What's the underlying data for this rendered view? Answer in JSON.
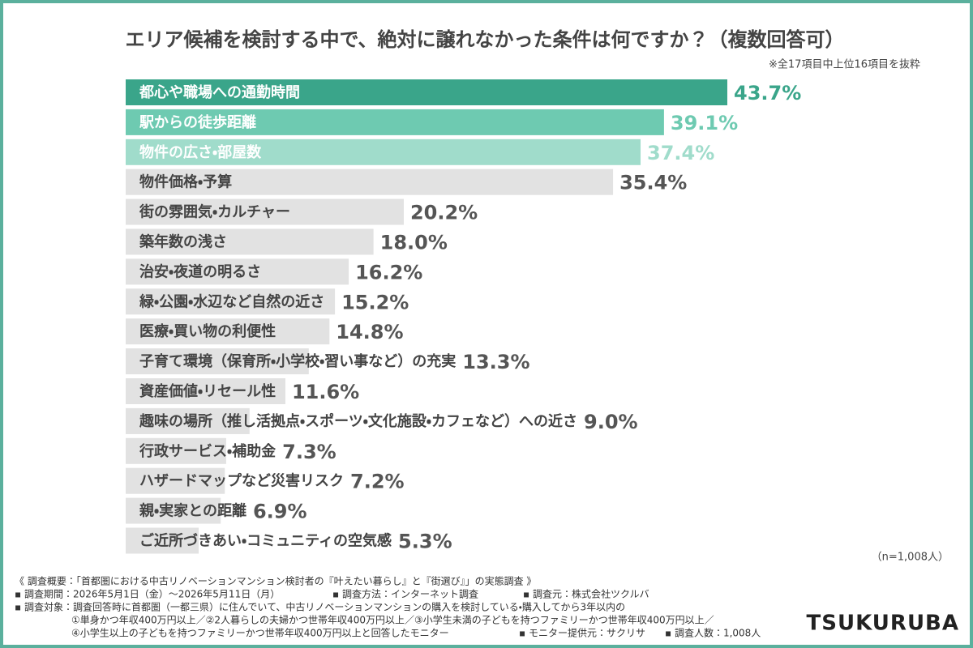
{
  "chart_data": {
    "type": "hbar",
    "title": "エリア候補を検討する中で、絶対に譲れなかった条件は何ですか？（複数回答可）",
    "subtitle": "※全17項目中上位16項目を抜粋",
    "sample_size": "（n=1,008人）",
    "categories": [
      "都心や職場への通勤時間",
      "駅からの徒歩距離",
      "物件の広さ・部屋数",
      "物件価格・予算",
      "街の雰囲気・カルチャー",
      "築年数の浅さ",
      "治安・夜道の明るさ",
      "緑・公園・水辺など自然の近さ",
      "医療・買い物の利便性",
      "子育て環境（保育所・小学校・習い事など）の充実",
      "資産価値・リセール性",
      "趣味の場所（推し活拠点・スポーツ・文化施設・カフェなど）への近さ",
      "行政サービス・補助金",
      "ハザードマップなど災害リスク",
      "親・実家との距離",
      "ご近所づきあい・コミュニティの空気感"
    ],
    "values": [
      43.7,
      39.1,
      37.4,
      35.4,
      20.2,
      18.0,
      16.2,
      15.2,
      14.8,
      13.3,
      11.6,
      9.0,
      7.3,
      7.2,
      6.9,
      5.3
    ],
    "value_labels": [
      "43.7%",
      "39.1%",
      "37.4%",
      "35.4%",
      "20.2%",
      "18.0%",
      "16.2%",
      "15.2%",
      "14.8%",
      "13.3%",
      "11.6%",
      "9.0%",
      "7.3%",
      "7.2%",
      "6.9%",
      "5.3%"
    ],
    "colors": [
      "#3aa58a",
      "#6ecab1",
      "#a0dccb",
      "#e2e2e2",
      "#e2e2e2",
      "#e2e2e2",
      "#e2e2e2",
      "#e2e2e2",
      "#e2e2e2",
      "#e2e2e2",
      "#e2e2e2",
      "#e2e2e2",
      "#e2e2e2",
      "#e2e2e2",
      "#e2e2e2",
      "#e2e2e2"
    ],
    "category_label_colors": [
      "#ffffff",
      "#ffffff",
      "#ffffff",
      "#444444",
      "#444444",
      "#444444",
      "#444444",
      "#444444",
      "#444444",
      "#444444",
      "#444444",
      "#444444",
      "#444444",
      "#444444",
      "#444444",
      "#444444"
    ],
    "value_label_colors": [
      "#3aa58a",
      "#6ecab1",
      "#a0dccb",
      "#555555",
      "#555555",
      "#555555",
      "#555555",
      "#555555",
      "#555555",
      "#555555",
      "#555555",
      "#555555",
      "#555555",
      "#555555",
      "#555555",
      "#555555"
    ]
  },
  "footer": {
    "overview": "《 調査概要：「首都圏における中古リノベーションマンション検討者の『叶えたい暮らし』と『街選び』」の実態調査 》",
    "period": "▪ 調査期間：2026年5月1日（金）～2026年5月11日（月）",
    "method": "▪ 調査方法：インターネット調査",
    "source": "▪ 調査元：株式会社ツクルバ",
    "target": "▪ 調査対象：調査回答時に首都圏（一都三県）に住んでいて、中古リノベーションマンションの購入を検討している・購入してから3年以内の",
    "target_2": "①単身かつ年収400万円以上／②2人暮らしの夫婦かつ世帯年収400万円以上／③小学生未満の子どもを持つファミリーかつ世帯年収400万円以上／",
    "target_3": "④小学生以上の子どもを持つファミリーかつ世帯年収400万円以上と回答したモニター",
    "provider": "▪ モニター提供元：サクリサ",
    "count": "▪ 調査人数：1,008人",
    "logo": "TSUKURUBA"
  }
}
